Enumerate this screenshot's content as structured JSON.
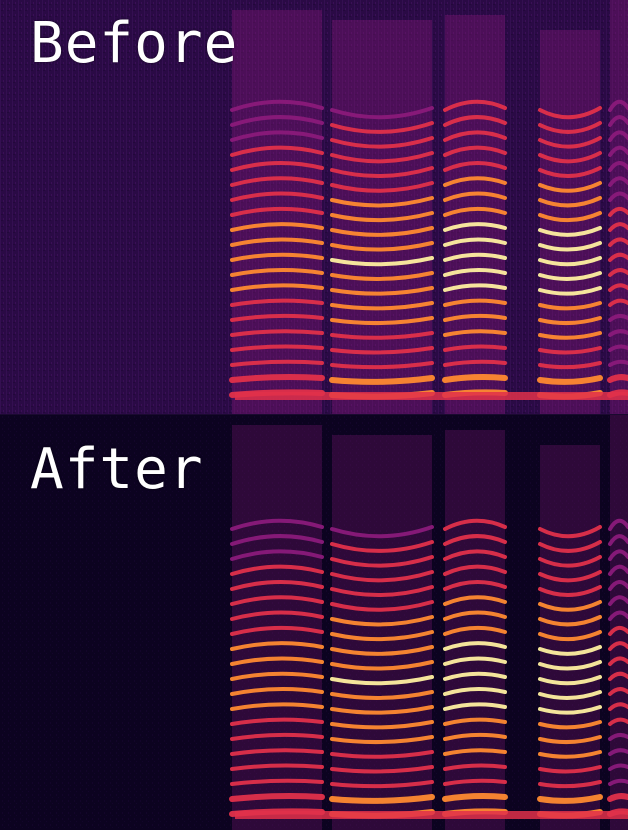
{
  "panels": [
    {
      "id": "before",
      "label": "Before",
      "background": "#2a0a45",
      "noise": 0.55
    },
    {
      "id": "after",
      "label": "After",
      "background": "#0c0320",
      "noise": 0.15
    }
  ],
  "colors": {
    "low": "#2a0a45",
    "mid": "#8a1a7a",
    "warm": "#e0304a",
    "hot": "#ff8a30",
    "peak": "#fff0a0"
  }
}
